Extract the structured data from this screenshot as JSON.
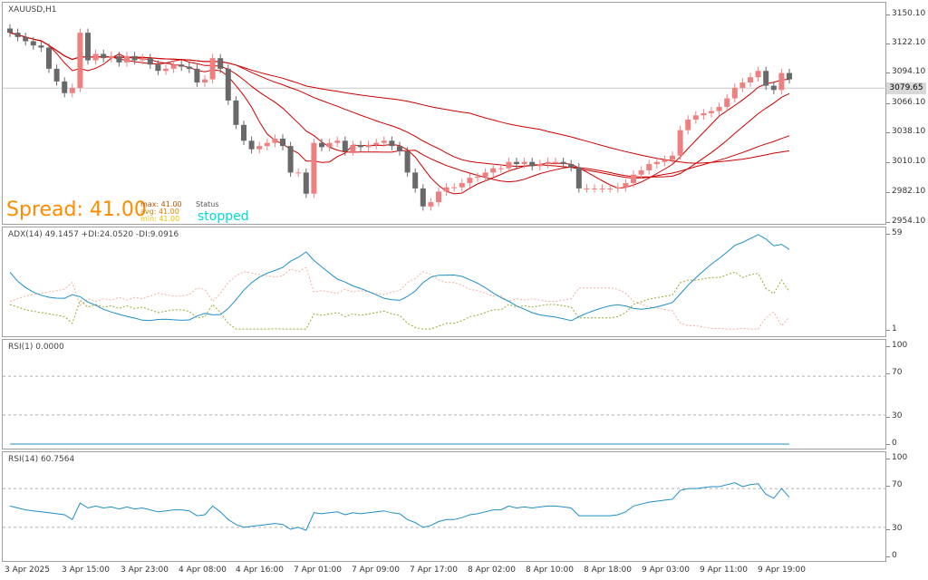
{
  "symbol_label": "XAUUSD,H1",
  "current_price": "3079.65",
  "spread": {
    "label": "Spread: 41.00",
    "max": "max: 41.00",
    "avg": "avg: 41.00",
    "min": "min: 41.00",
    "status_label": "Status",
    "status_value": "stopped"
  },
  "price_axis": [
    "3150.10",
    "3122.10",
    "3094.10",
    "3066.10",
    "3038.10",
    "3010.10",
    "2982.10",
    "2954.10"
  ],
  "adx_label": "ADX(14) 49.1457 +DI:24.0520 -DI:9.0916",
  "adx_axis": [
    "59",
    "1"
  ],
  "rsi1_label": "RSI(1) 0.0000",
  "rsi1_axis": [
    "100",
    "70",
    "30",
    "0"
  ],
  "rsi14_label": "RSI(14) 60.7564",
  "rsi14_axis": [
    "100",
    "70",
    "30",
    "0"
  ],
  "time_axis": [
    "3 Apr 2025",
    "3 Apr 15:00",
    "3 Apr 23:00",
    "4 Apr 08:00",
    "4 Apr 16:00",
    "7 Apr 01:00",
    "7 Apr 09:00",
    "7 Apr 17:00",
    "8 Apr 02:00",
    "8 Apr 10:00",
    "8 Apr 18:00",
    "9 Apr 03:00",
    "9 Apr 11:00",
    "9 Apr 19:00"
  ],
  "colors": {
    "bull": "#f08080",
    "bear": "#696969",
    "ma": "#cc0000",
    "adx": "#1f8fc8",
    "di_plus": "#9aa830",
    "di_minus": "#f0b0a0",
    "rsi": "#1f8fc8",
    "spread": "#ff8c00",
    "status": "#00e0e0"
  },
  "chart_data": {
    "type": "candlestick",
    "closes": [
      3132,
      3128,
      3124,
      3120,
      3118,
      3098,
      3086,
      3075,
      3080,
      3132,
      3106,
      3112,
      3108,
      3110,
      3104,
      3110,
      3106,
      3108,
      3102,
      3096,
      3098,
      3102,
      3100,
      3098,
      3085,
      3088,
      3108,
      3098,
      3068,
      3045,
      3030,
      3022,
      3025,
      3028,
      3032,
      3025,
      3000,
      3000,
      2980,
      3028,
      3024,
      3028,
      3030,
      3020,
      3026,
      3024,
      3026,
      3028,
      3030,
      3025,
      3020,
      3000,
      2985,
      2968,
      2972,
      2982,
      2986,
      2986,
      2990,
      2995,
      2996,
      3000,
      3004,
      3004,
      3010,
      3008,
      3010,
      3006,
      3008,
      3010,
      3010,
      3008,
      3005,
      2985,
      2985,
      2985,
      2985,
      2985,
      2986,
      2990,
      2998,
      3002,
      3008,
      3010,
      3012,
      3016,
      3040,
      3050,
      3054,
      3056,
      3058,
      3062,
      3070,
      3080,
      3085,
      3090,
      3096,
      3082,
      3078,
      3094,
      3088
    ],
    "rsi14": [
      52,
      50,
      48,
      47,
      46,
      45,
      44,
      43,
      38,
      55,
      50,
      52,
      50,
      51,
      49,
      51,
      49,
      50,
      48,
      46,
      47,
      48,
      48,
      47,
      42,
      43,
      52,
      46,
      38,
      33,
      30,
      31,
      32,
      33,
      34,
      33,
      28,
      30,
      27,
      45,
      44,
      45,
      46,
      43,
      45,
      44,
      45,
      46,
      47,
      45,
      44,
      38,
      35,
      30,
      32,
      36,
      38,
      38,
      40,
      43,
      44,
      46,
      48,
      48,
      52,
      50,
      51,
      50,
      51,
      52,
      52,
      51,
      50,
      42,
      42,
      42,
      42,
      42,
      43,
      46,
      52,
      54,
      56,
      57,
      58,
      59,
      68,
      70,
      70,
      71,
      72,
      72,
      74,
      76,
      72,
      74,
      75,
      64,
      60,
      70,
      61
    ],
    "rsi1_value": 0,
    "adx_value": 49.1457,
    "di_plus_value": 24.052,
    "di_minus_value": 9.0916
  }
}
